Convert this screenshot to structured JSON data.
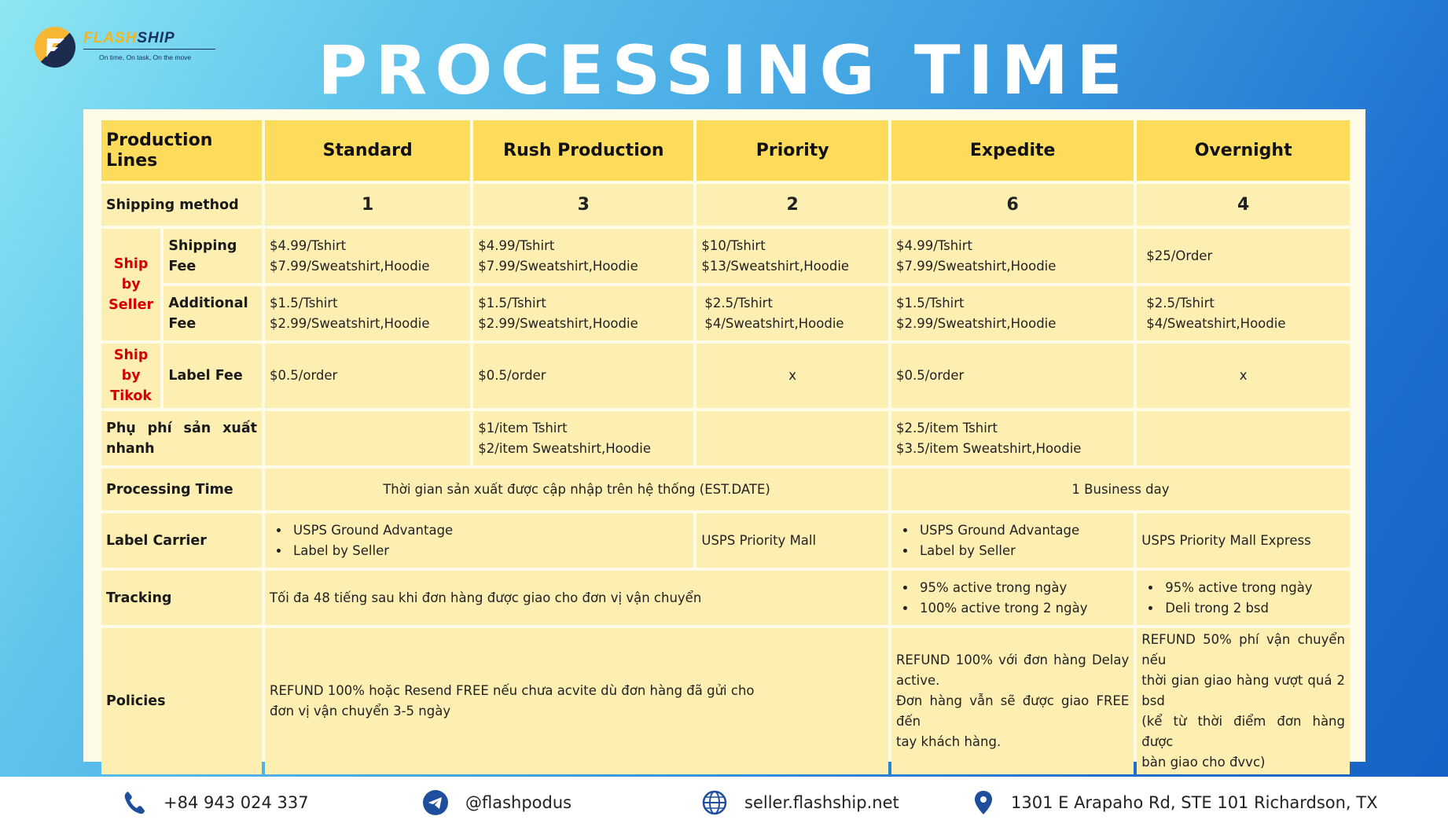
{
  "logo": {
    "brand_a": "FLASH",
    "brand_b": "SHIP",
    "tagline": "On time, On task, On the move"
  },
  "title": "PROCESSING TIME",
  "table": {
    "headers": [
      "Production Lines",
      "Standard",
      "Rush Production",
      "Priority",
      "Expedite",
      "Overnight"
    ],
    "shipping_method": {
      "label": "Shipping method",
      "values": [
        "1",
        "3",
        "2",
        "6",
        "4"
      ]
    },
    "ship_by_seller": {
      "group": [
        "Ship by",
        "Seller"
      ],
      "shipping_fee": {
        "label": "Shipping Fee",
        "values": [
          [
            "$4.99/Tshirt",
            "$7.99/Sweatshirt,Hoodie"
          ],
          [
            "$4.99/Tshirt",
            "$7.99/Sweatshirt,Hoodie"
          ],
          [
            "$10/Tshirt",
            "$13/Sweatshirt,Hoodie"
          ],
          [
            "$4.99/Tshirt",
            "$7.99/Sweatshirt,Hoodie"
          ],
          [
            "$25/Order"
          ]
        ]
      },
      "additional_fee": {
        "label": [
          "Additional",
          "Fee"
        ],
        "values": [
          [
            "$1.5/Tshirt",
            "$2.99/Sweatshirt,Hoodie"
          ],
          [
            "$1.5/Tshirt",
            "$2.99/Sweatshirt,Hoodie"
          ],
          [
            "$2.5/Tshirt",
            "$4/Sweatshirt,Hoodie"
          ],
          [
            "$1.5/Tshirt",
            "$2.99/Sweatshirt,Hoodie"
          ],
          [
            "$2.5/Tshirt",
            "$4/Sweatshirt,Hoodie"
          ]
        ]
      }
    },
    "ship_by_tikok": {
      "group": [
        "Ship by",
        "Tikok"
      ],
      "label": "Label Fee",
      "values": [
        "$0.5/order",
        "$0.5/order",
        "x",
        "$0.5/order",
        "x"
      ]
    },
    "rush_fee": {
      "label": [
        "Phụ phí sản xuất",
        "nhanh"
      ],
      "values": [
        [],
        [
          "$1/item Tshirt",
          "$2/item Sweatshirt,Hoodie"
        ],
        [],
        [
          "$2.5/item Tshirt",
          "$3.5/item Sweatshirt,Hoodie"
        ],
        []
      ]
    },
    "processing_time": {
      "label": "Processing Time",
      "standard_to_priority": "Thời gian sản xuất được cập nhập trên hệ thống (EST.DATE)",
      "expedite_overnight": "1 Business day"
    },
    "label_carrier": {
      "label": "Label Carrier",
      "standard_rush": [
        "USPS Ground Advantage",
        "Label by Seller"
      ],
      "priority": "USPS Priority Mall",
      "expedite": [
        "USPS Ground Advantage",
        "Label by Seller"
      ],
      "overnight": "USPS Priority Mall Express"
    },
    "tracking": {
      "label": "Tracking",
      "standard_to_priority": "Tối đa 48 tiếng sau khi đơn hàng được giao cho đơn vị vận chuyển",
      "expedite": [
        "95% active trong ngày",
        "100% active trong 2 ngày"
      ],
      "overnight": [
        "95% active trong ngày",
        "Deli trong 2 bsd"
      ]
    },
    "policies": {
      "label": "Policies",
      "standard_to_priority": [
        "REFUND 100% hoặc Resend FREE nếu chưa acvite dù đơn hàng đã gửi cho",
        "đơn vị vận chuyển 3-5 ngày"
      ],
      "expedite": [
        "REFUND 100% với đơn hàng Delay",
        "active.",
        "Đơn hàng vẫn sẽ được giao FREE đến",
        "tay khách hàng."
      ],
      "overnight": [
        "REFUND 50% phí vận chuyển nếu",
        "thời gian giao hàng vượt quá 2",
        "bsd",
        "(kể từ thời điểm đơn hàng được",
        "bàn giao cho đvvc)"
      ]
    }
  },
  "footer": {
    "phone": "+84 943 024 337",
    "telegram": "@flashpodus",
    "website": "seller.flashship.net",
    "address": "1301 E Arapaho Rd, STE 101 Richardson, TX"
  },
  "colors": {
    "header_yellow": "#fddc5c",
    "cell_yellow": "#fdefb2",
    "red_label": "#d60000",
    "footer_icon": "#1f4f9c"
  }
}
